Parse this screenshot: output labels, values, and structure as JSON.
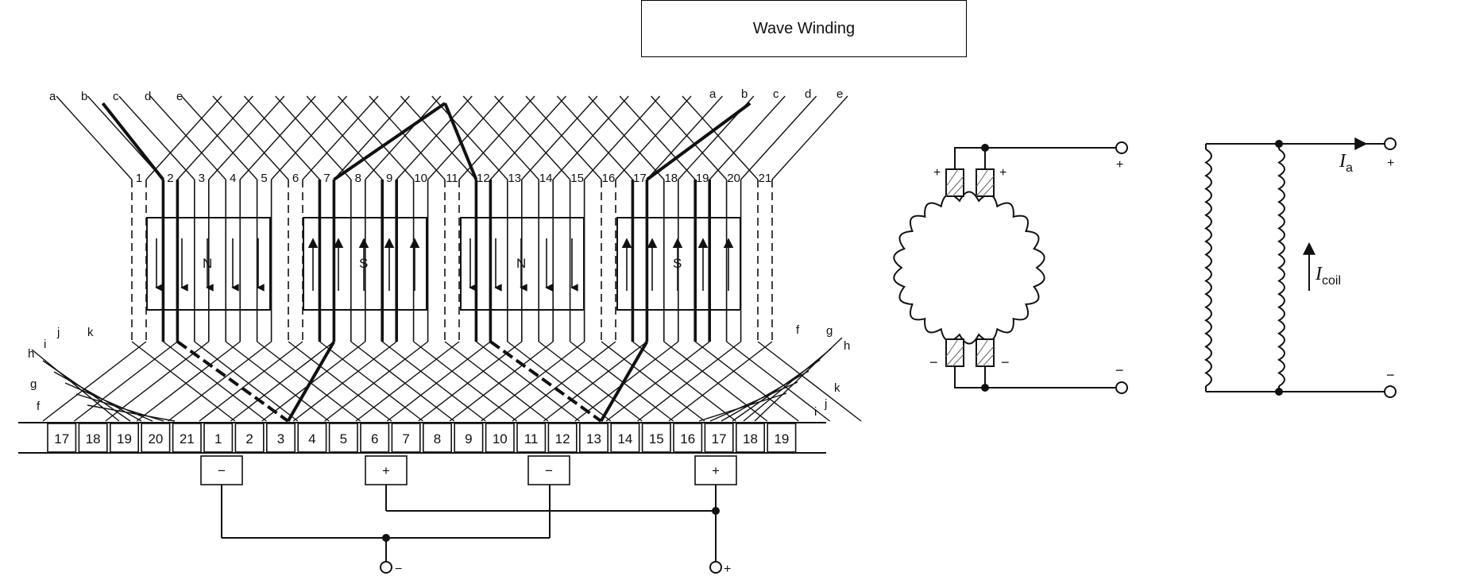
{
  "title": "Wave Winding",
  "winding": {
    "top_left_letters": [
      "a",
      "b",
      "c",
      "d",
      "e"
    ],
    "top_right_letters": [
      "a",
      "b",
      "c",
      "d",
      "e"
    ],
    "bottom_left_letters": [
      "h",
      "i",
      "j",
      "k",
      "g",
      "f"
    ],
    "bottom_right_letters": [
      "f",
      "g",
      "h",
      "k",
      "j",
      "i"
    ],
    "slot_numbers": [
      "1",
      "2",
      "3",
      "4",
      "5",
      "6",
      "7",
      "8",
      "9",
      "10",
      "11",
      "12",
      "13",
      "14",
      "15",
      "16",
      "17",
      "18",
      "19",
      "20",
      "21"
    ],
    "poles": [
      "N",
      "S",
      "N",
      "S"
    ],
    "commutator_segments": [
      "17",
      "18",
      "19",
      "20",
      "21",
      "1",
      "2",
      "3",
      "4",
      "5",
      "6",
      "7",
      "8",
      "9",
      "10",
      "11",
      "12",
      "13",
      "14",
      "15",
      "16",
      "17",
      "18",
      "19"
    ],
    "brushes": [
      "−",
      "+",
      "−",
      "+"
    ],
    "terminal_negative": "−",
    "terminal_positive": "+"
  },
  "armature": {
    "brush_plus_left": "+",
    "brush_plus_right": "+",
    "brush_minus_left": "−",
    "brush_minus_right": "−",
    "terminal_plus": "+",
    "terminal_minus": "−"
  },
  "equivalent": {
    "current_armature_symbol": "I",
    "current_armature_sub": "a",
    "current_coil_symbol": "I",
    "current_coil_sub": "coil",
    "terminal_plus": "+",
    "terminal_minus": "−"
  }
}
